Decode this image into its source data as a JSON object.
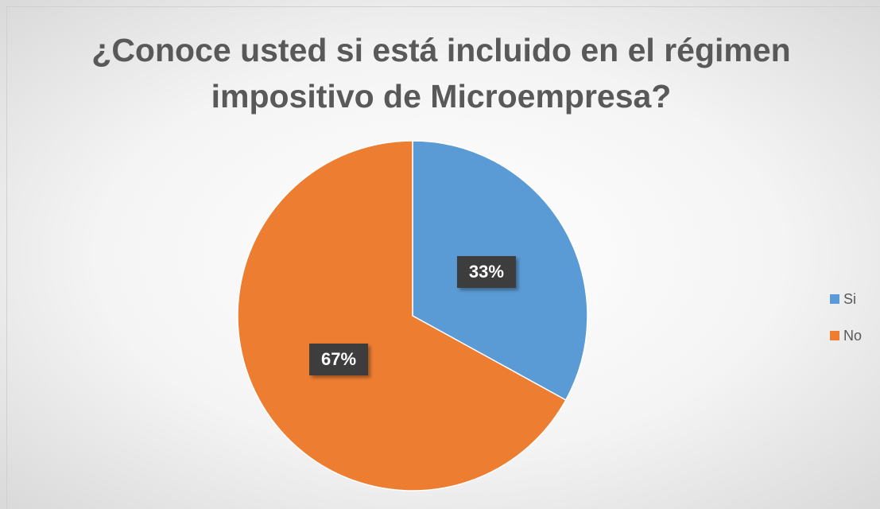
{
  "chart_data": {
    "type": "pie",
    "title": "¿Conoce usted si está incluido en el régimen impositivo de Microempresa?",
    "categories": [
      "Si",
      "No"
    ],
    "values": [
      33,
      67
    ],
    "value_labels": [
      "33%",
      "67%"
    ],
    "colors": [
      "#5b9bd5",
      "#ed7d31"
    ],
    "legend": "right"
  }
}
